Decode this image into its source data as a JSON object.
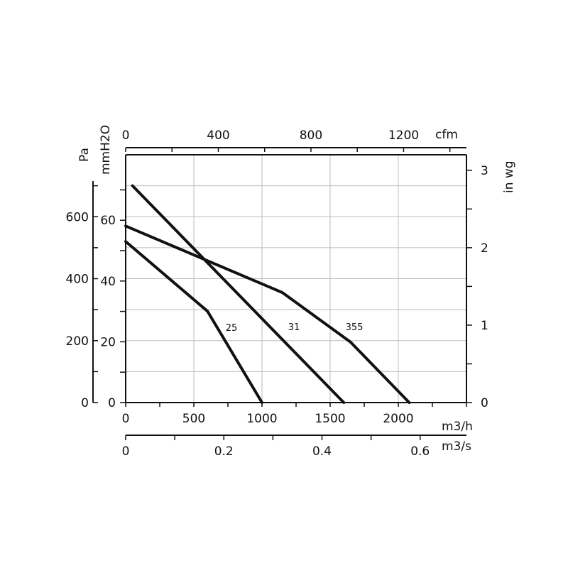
{
  "chart_data": {
    "type": "line",
    "title": "",
    "x": {
      "label": "m3/h",
      "range": [
        0,
        2500
      ],
      "ticks": [
        0,
        500,
        1000,
        1500,
        2000
      ],
      "tick_labels": [
        "0",
        "500",
        "1000",
        "1500",
        "2000"
      ]
    },
    "y": {
      "label": "Pa",
      "range": [
        0,
        800
      ],
      "ticks": [
        0,
        200,
        400,
        600
      ],
      "tick_labels": [
        "0",
        "200",
        "400",
        "600"
      ]
    },
    "y_secondary_left": {
      "label": "mmH2O",
      "range": [
        0,
        80
      ],
      "tick_labels": [
        "0",
        "20",
        "40",
        "60"
      ]
    },
    "y_right": {
      "label": "in wg",
      "range": [
        0,
        3.2
      ],
      "ticks": [
        0,
        1,
        2,
        3
      ],
      "tick_labels": [
        "0",
        "1",
        "2",
        "3"
      ]
    },
    "x_top": {
      "label": "cfm",
      "ticks": [
        0,
        400,
        800,
        1200
      ],
      "tick_labels": [
        "0",
        "400",
        "800",
        "1200"
      ]
    },
    "x_bottom2": {
      "label": "m3/s",
      "ticks": [
        0,
        0.2,
        0.4,
        0.6
      ],
      "tick_labels": [
        "0",
        "0.2",
        "0.4",
        "0.6"
      ]
    },
    "grid": true,
    "series": [
      {
        "name": "25",
        "points": [
          [
            0,
            520
          ],
          [
            600,
            295
          ],
          [
            1000,
            0
          ]
        ]
      },
      {
        "name": "31",
        "points": [
          [
            50,
            700
          ],
          [
            1600,
            0
          ]
        ]
      },
      {
        "name": "355",
        "points": [
          [
            0,
            570
          ],
          [
            1150,
            355
          ],
          [
            1650,
            195
          ],
          [
            2080,
            0
          ]
        ]
      }
    ]
  }
}
